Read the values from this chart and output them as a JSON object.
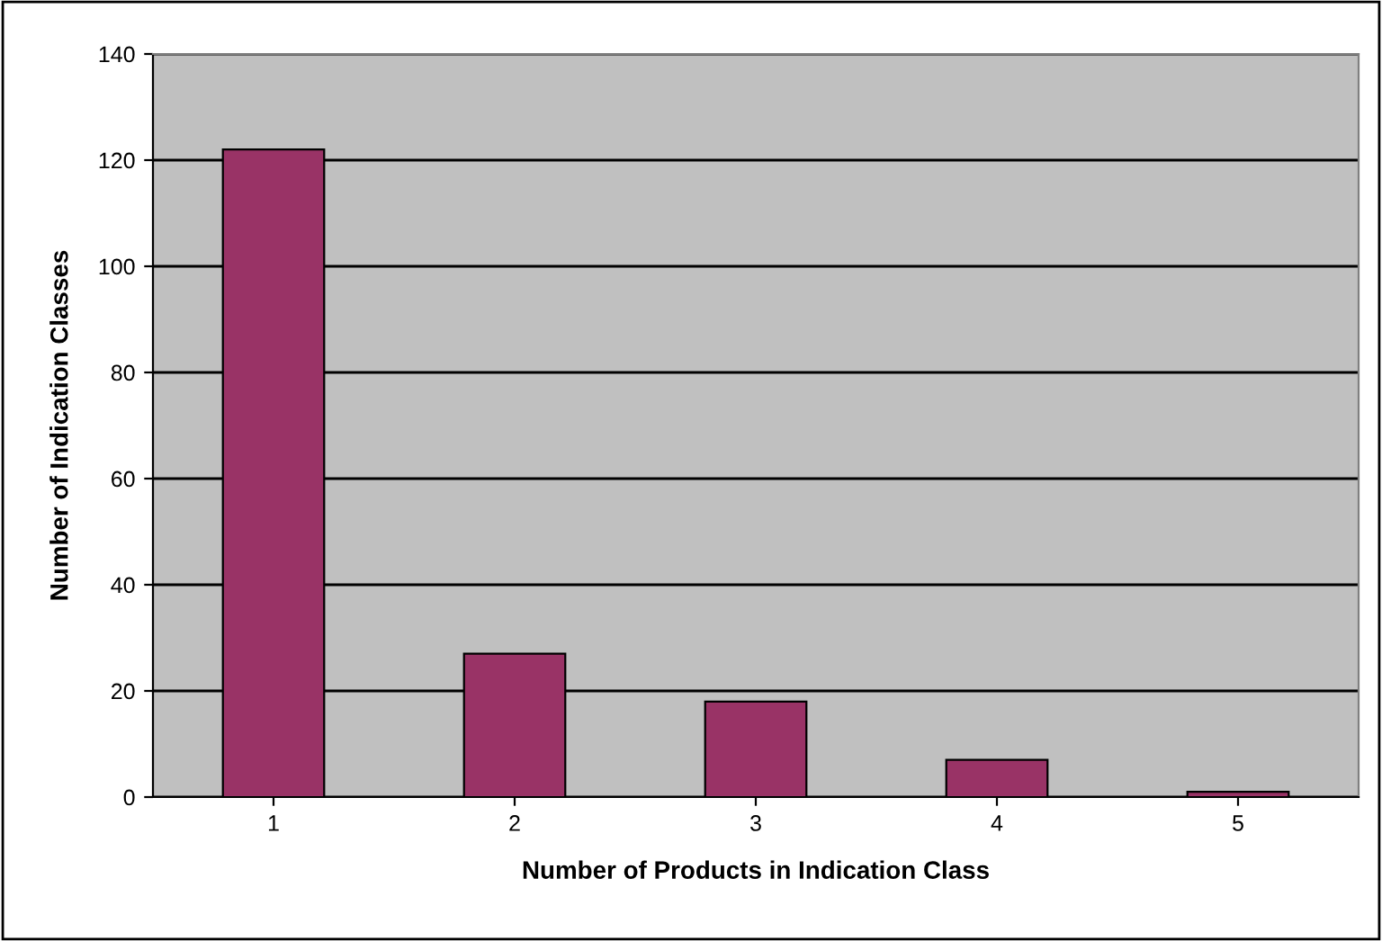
{
  "chart_data": {
    "type": "bar",
    "xlabel": "Number of Products in Indication Class",
    "ylabel": "Number of Indication Classes",
    "categories": [
      "1",
      "2",
      "3",
      "4",
      "5"
    ],
    "values": [
      122,
      27,
      18,
      7,
      1
    ],
    "color": "#993366",
    "ylim": [
      0,
      140
    ],
    "yticks": [
      0,
      20,
      40,
      60,
      80,
      100,
      120,
      140
    ],
    "grid": "y"
  }
}
